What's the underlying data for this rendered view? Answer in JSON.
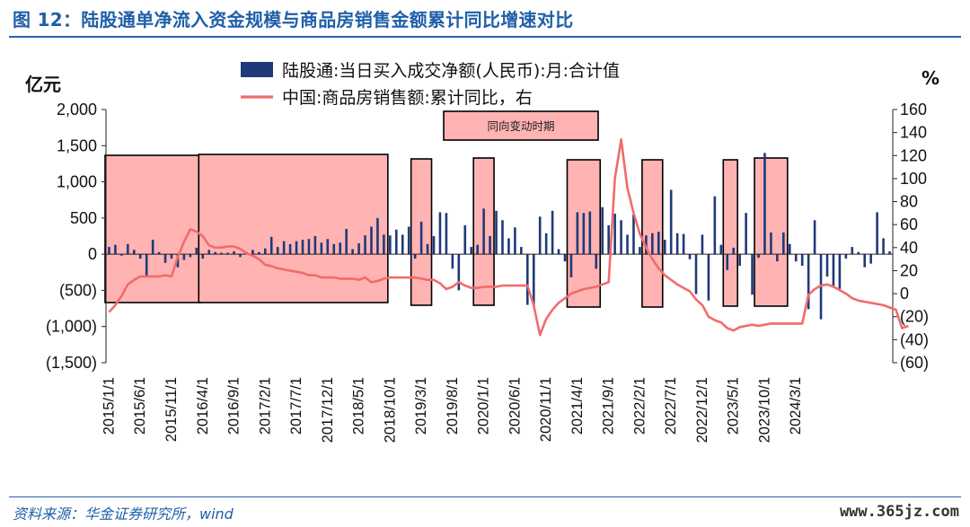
{
  "header": {
    "title": "图 12：陆股通单净流入资金规模与商品房销售金额累计同比增速对比"
  },
  "footer": {
    "source": "资料来源：华金证券研究所，wind",
    "watermark": "www.365jz.com"
  },
  "colors": {
    "bar": "#1f3a7a",
    "line": "#f06c6c",
    "box_fill": "#ffb3b3",
    "box_stroke": "#000000",
    "title": "#1f5fa8"
  },
  "chart_data": {
    "type": "bar+line",
    "left_unit": "亿元",
    "right_unit": "%",
    "annotation": "同向变动时期",
    "left_axis": {
      "ylim": [
        -1500,
        2000
      ],
      "ticks": [
        2000,
        1500,
        1000,
        500,
        0,
        -500,
        -1000,
        -1500
      ],
      "tick_labels": [
        "2,000",
        "1,500",
        "1,000",
        "500",
        "0",
        "(500)",
        "(1,000)",
        "(1,500)"
      ]
    },
    "right_axis": {
      "ylim": [
        -60,
        160
      ],
      "ticks": [
        160,
        140,
        120,
        100,
        80,
        60,
        40,
        20,
        0,
        -20,
        -40,
        -60
      ],
      "tick_labels": [
        "160",
        "140",
        "120",
        "100",
        "80",
        "60",
        "40",
        "20",
        "0",
        "(20)",
        "(40)",
        "(60)"
      ]
    },
    "x_tick_labels": [
      "2015/1/1",
      "2015/6/1",
      "2015/11/1",
      "2016/4/1",
      "2016/9/1",
      "2017/2/1",
      "2017/7/1",
      "2017/12/1",
      "2018/5/1",
      "2018/10/1",
      "2019/3/1",
      "2019/8/1",
      "2020/1/1",
      "2020/6/1",
      "2020/11/1",
      "2021/4/1",
      "2021/9/1",
      "2022/2/1",
      "2022/7/1",
      "2022/12/1",
      "2023/5/1",
      "2023/10/1",
      "2024/3/1"
    ],
    "series": [
      {
        "name": "陆股通:当日买入成交净额(人民币):月:合计值",
        "axis": "left",
        "kind": "bar",
        "values": [
          100,
          130,
          -20,
          140,
          60,
          -60,
          -300,
          200,
          30,
          -120,
          -60,
          -180,
          -80,
          -40,
          90,
          -60,
          60,
          30,
          20,
          20,
          40,
          -40,
          30,
          60,
          30,
          80,
          240,
          100,
          180,
          140,
          180,
          200,
          210,
          250,
          160,
          210,
          140,
          160,
          350,
          70,
          150,
          260,
          380,
          500,
          270,
          260,
          340,
          270,
          380,
          -60,
          450,
          140,
          250,
          580,
          570,
          -200,
          -500,
          400,
          100,
          130,
          630,
          250,
          600,
          470,
          220,
          370,
          100,
          -700,
          -710,
          520,
          290,
          600,
          70,
          -100,
          -320,
          580,
          570,
          590,
          -200,
          650,
          400,
          560,
          470,
          270,
          550,
          100,
          260,
          290,
          310,
          200,
          890,
          290,
          280,
          -70,
          -550,
          270,
          -640,
          800,
          130,
          -220,
          90,
          -160,
          570,
          -560,
          -50,
          1400,
          300,
          -100,
          300,
          140,
          -100,
          -160,
          -760,
          470,
          -900,
          -310,
          -440,
          -480,
          -60,
          100,
          30,
          -180,
          -130,
          580,
          220,
          40
        ]
      },
      {
        "name": "中国:商品房销售额:累计同比，右",
        "axis": "right",
        "kind": "line",
        "values": [
          -16,
          -10,
          -2,
          8,
          12,
          15,
          15,
          15,
          15,
          16,
          15,
          32,
          45,
          56,
          54,
          50,
          42,
          40,
          40,
          41,
          41,
          39,
          35,
          33,
          30,
          25,
          24,
          22,
          21,
          20,
          19,
          18,
          16,
          16,
          14,
          14,
          14,
          13,
          13,
          13,
          12,
          14,
          10,
          11,
          13,
          14,
          14,
          14,
          14,
          14,
          13,
          12,
          12,
          9,
          4,
          6,
          10,
          7,
          5,
          5,
          6,
          6,
          6,
          7,
          7,
          7,
          7,
          7,
          -10,
          -36,
          -22,
          -14,
          -8,
          -4,
          0,
          2,
          4,
          5,
          6,
          8,
          10,
          100,
          134,
          92,
          70,
          52,
          40,
          30,
          22,
          16,
          12,
          8,
          5,
          2,
          -5,
          -10,
          -20,
          -23,
          -25,
          -30,
          -32,
          -29,
          -28,
          -27,
          -28,
          -27,
          -26,
          -26,
          -26,
          -26,
          -26,
          -26,
          -1,
          4,
          7,
          8,
          6,
          3,
          0,
          -4,
          -6,
          -7,
          -8,
          -9,
          -10,
          -12,
          -14,
          -30,
          -28
        ]
      }
    ]
  }
}
